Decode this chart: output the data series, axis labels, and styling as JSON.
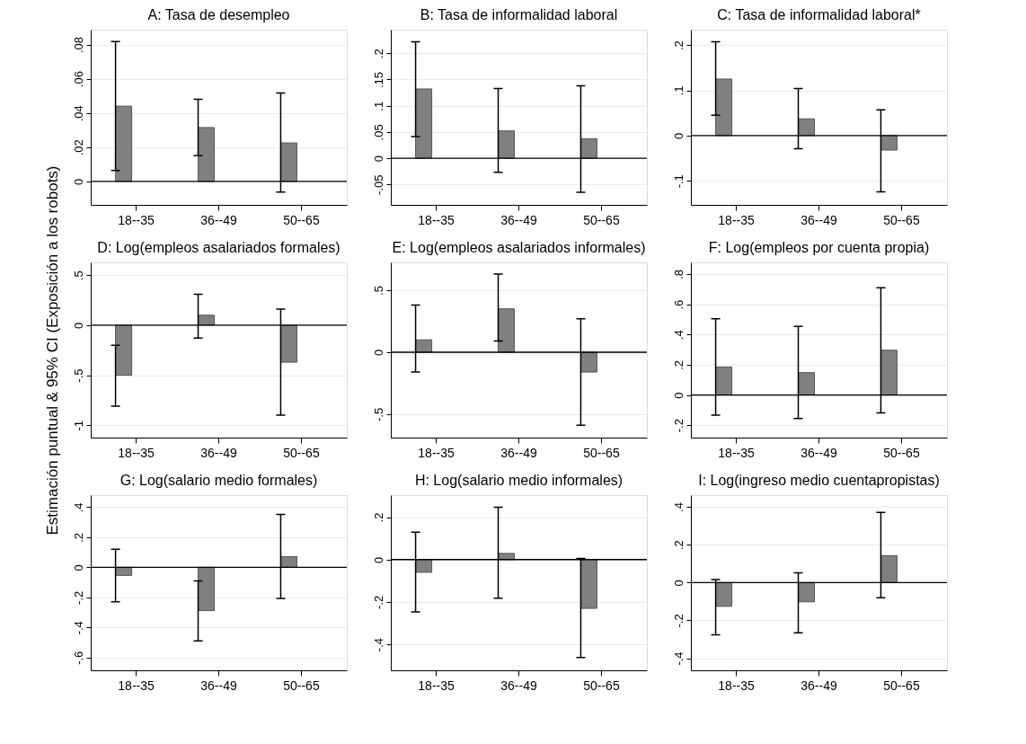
{
  "chart_data": [
    {
      "type": "bar",
      "title": "A: Tasa de desempleo",
      "categories": [
        "18--35",
        "36--49",
        "50--65"
      ],
      "values": [
        0.044,
        0.0315,
        0.0225
      ],
      "errors": [
        [
          0.0064,
          0.0817
        ],
        [
          0.015,
          0.048
        ],
        [
          -0.0062,
          0.0517
        ]
      ],
      "color": "#808080",
      "ylim": [
        -0.0137,
        0.0887
      ],
      "yticks": [
        0,
        {
          "value": 0.02,
          "label": ".02"
        },
        {
          "value": 0.04,
          "label": ".04"
        },
        {
          "value": 0.06,
          "label": ".06"
        },
        {
          "value": 0.08,
          "label": ".08"
        }
      ],
      "grid": "y",
      "ref_lines": [
        {
          "axis": "y",
          "value": 0
        }
      ]
    },
    {
      "type": "bar",
      "title": "B: Tasa de informalidad laboral",
      "categories": [
        "18--35",
        "36--49",
        "50--65"
      ],
      "values": [
        0.132,
        0.052,
        0.037
      ],
      "errors": [
        [
          0.041,
          0.222
        ],
        [
          -0.027,
          0.133
        ],
        [
          -0.065,
          0.138
        ]
      ],
      "color": "#808080",
      "ylim": [
        -0.089,
        0.245
      ],
      "yticks": [
        {
          "value": -0.05,
          "label": "-.05"
        },
        0,
        {
          "value": 0.05,
          "label": ".05"
        },
        {
          "value": 0.1,
          "label": ".1"
        },
        {
          "value": 0.15,
          "label": ".15"
        },
        {
          "value": 0.2,
          "label": ".2"
        }
      ],
      "grid": "y",
      "ref_lines": [
        {
          "axis": "y",
          "value": 0
        }
      ]
    },
    {
      "type": "bar",
      "title": "C: Tasa de informalidad laboral*",
      "categories": [
        "18--35",
        "36--49",
        "50--65"
      ],
      "values": [
        0.125,
        0.037,
        -0.032
      ],
      "errors": [
        [
          0.045,
          0.207
        ],
        [
          -0.029,
          0.104
        ],
        [
          -0.124,
          0.057
        ]
      ],
      "color": "#808080",
      "ylim": [
        -0.153,
        0.234
      ],
      "yticks": [
        {
          "value": -0.1,
          "label": "-.1"
        },
        0,
        {
          "value": 0.1,
          "label": ".1"
        },
        {
          "value": 0.2,
          "label": ".2"
        }
      ],
      "grid": "y",
      "ref_lines": [
        {
          "axis": "y",
          "value": 0
        }
      ]
    },
    {
      "type": "bar",
      "title": "D: Log(empleos asalariados formales)",
      "ylabel": "Estimación puntual & 95% CI (Exposición a los robots)",
      "categories": [
        "18--35",
        "36--49",
        "50--65"
      ],
      "values": [
        -0.5,
        0.1,
        -0.37
      ],
      "errors": [
        [
          -0.81,
          -0.2
        ],
        [
          -0.13,
          0.31
        ],
        [
          -0.9,
          0.16
        ]
      ],
      "color": "#808080",
      "ylim": [
        -1.124,
        0.628
      ],
      "yticks": [
        -1,
        {
          "value": -0.5,
          "label": "-.5"
        },
        0,
        {
          "value": 0.5,
          "label": ".5"
        }
      ],
      "grid": "y",
      "ref_lines": [
        {
          "axis": "y",
          "value": 0
        }
      ]
    },
    {
      "type": "bar",
      "title": "E: Log(empleos asalariados informales)",
      "categories": [
        "18--35",
        "36--49",
        "50--65"
      ],
      "values": [
        0.1,
        0.35,
        -0.16
      ],
      "errors": [
        [
          -0.16,
          0.38
        ],
        [
          0.09,
          0.63
        ],
        [
          -0.59,
          0.27
        ]
      ],
      "color": "#808080",
      "ylim": [
        -0.689,
        0.725
      ],
      "yticks": [
        {
          "value": -0.5,
          "label": "-.5"
        },
        0,
        {
          "value": 0.5,
          "label": ".5"
        }
      ],
      "grid": "y",
      "ref_lines": [
        {
          "axis": "y",
          "value": 0
        }
      ]
    },
    {
      "type": "bar",
      "title": "F: Log(empleos por cuenta propia)",
      "categories": [
        "18--35",
        "36--49",
        "50--65"
      ],
      "values": [
        0.185,
        0.148,
        0.296
      ],
      "errors": [
        [
          -0.134,
          0.504
        ],
        [
          -0.155,
          0.454
        ],
        [
          -0.118,
          0.709
        ]
      ],
      "color": "#808080",
      "ylim": [
        -0.282,
        0.877
      ],
      "yticks": [
        {
          "value": -0.2,
          "label": "-.2"
        },
        0,
        {
          "value": 0.2,
          "label": ".2"
        },
        {
          "value": 0.4,
          "label": ".4"
        },
        {
          "value": 0.6,
          "label": ".6"
        },
        {
          "value": 0.8,
          "label": ".8"
        }
      ],
      "grid": "y",
      "ref_lines": [
        {
          "axis": "y",
          "value": 0
        }
      ]
    },
    {
      "type": "bar",
      "title": "G: Log(salario medio formales)",
      "categories": [
        "18--35",
        "36--49",
        "50--65"
      ],
      "values": [
        -0.054,
        -0.288,
        0.071
      ],
      "errors": [
        [
          -0.229,
          0.12
        ],
        [
          -0.49,
          -0.09
        ],
        [
          -0.207,
          0.351
        ]
      ],
      "color": "#808080",
      "ylim": [
        -0.685,
        0.48
      ],
      "yticks": [
        {
          "value": -0.6,
          "label": "-.6"
        },
        {
          "value": -0.4,
          "label": "-.4"
        },
        {
          "value": -0.2,
          "label": "-.2"
        },
        0,
        {
          "value": 0.2,
          "label": ".2"
        },
        {
          "value": 0.4,
          "label": ".4"
        }
      ],
      "grid": "y",
      "ref_lines": [
        {
          "axis": "y",
          "value": 0
        }
      ]
    },
    {
      "type": "bar",
      "title": "H: Log(salario medio informales)",
      "categories": [
        "18--35",
        "36--49",
        "50--65"
      ],
      "values": [
        -0.06,
        0.029,
        -0.23
      ],
      "errors": [
        [
          -0.247,
          0.129
        ],
        [
          -0.182,
          0.247
        ],
        [
          -0.462,
          0.005
        ]
      ],
      "color": "#808080",
      "ylim": [
        -0.522,
        0.304
      ],
      "yticks": [
        {
          "value": -0.4,
          "label": "-.4"
        },
        {
          "value": -0.2,
          "label": "-.2"
        },
        0,
        {
          "value": 0.2,
          "label": ".2"
        }
      ],
      "grid": "y",
      "ref_lines": [
        {
          "axis": "y",
          "value": 0
        }
      ]
    },
    {
      "type": "bar",
      "title": "I: Log(ingreso medio cuentapropistas)",
      "categories": [
        "18--35",
        "36--49",
        "50--65"
      ],
      "values": [
        -0.126,
        -0.102,
        0.142
      ],
      "errors": [
        [
          -0.276,
          0.016
        ],
        [
          -0.266,
          0.051
        ],
        [
          -0.081,
          0.37
        ]
      ],
      "color": "#808080",
      "ylim": [
        -0.464,
        0.462
      ],
      "yticks": [
        {
          "value": -0.4,
          "label": "-.4"
        },
        {
          "value": -0.2,
          "label": "-.2"
        },
        0,
        {
          "value": 0.2,
          "label": ".2"
        },
        {
          "value": 0.4,
          "label": ".4"
        }
      ],
      "grid": "y",
      "ref_lines": [
        {
          "axis": "y",
          "value": 0
        }
      ]
    }
  ]
}
